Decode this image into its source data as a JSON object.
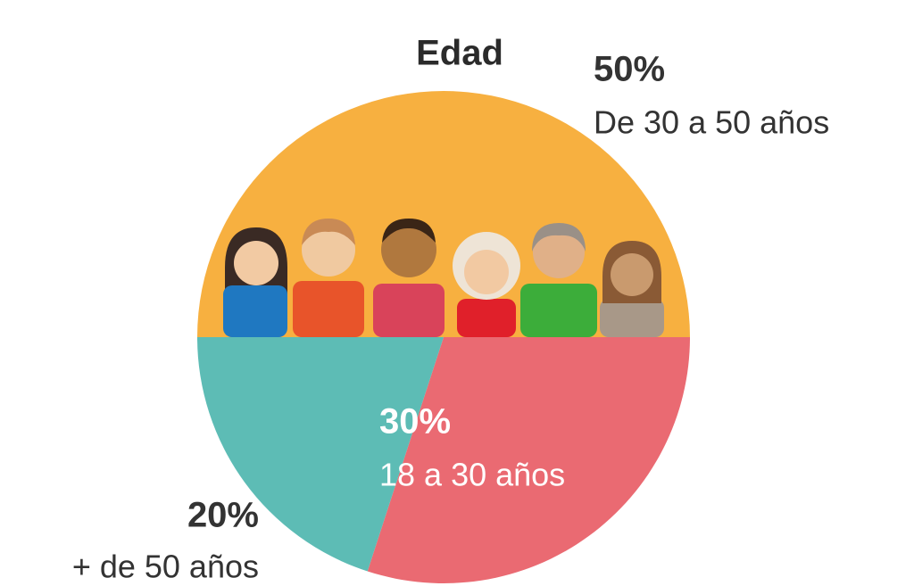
{
  "chart_data": {
    "type": "pie",
    "title": "Edad",
    "categories": [
      "De 30 a 50 años",
      "18 a 30 años",
      "+ de 50 años"
    ],
    "values": [
      50,
      30,
      20
    ],
    "value_labels": [
      "50%",
      "30%",
      "20%"
    ],
    "colors": [
      "#f7b040",
      "#ea6a72",
      "#5dbcb5"
    ]
  }
}
